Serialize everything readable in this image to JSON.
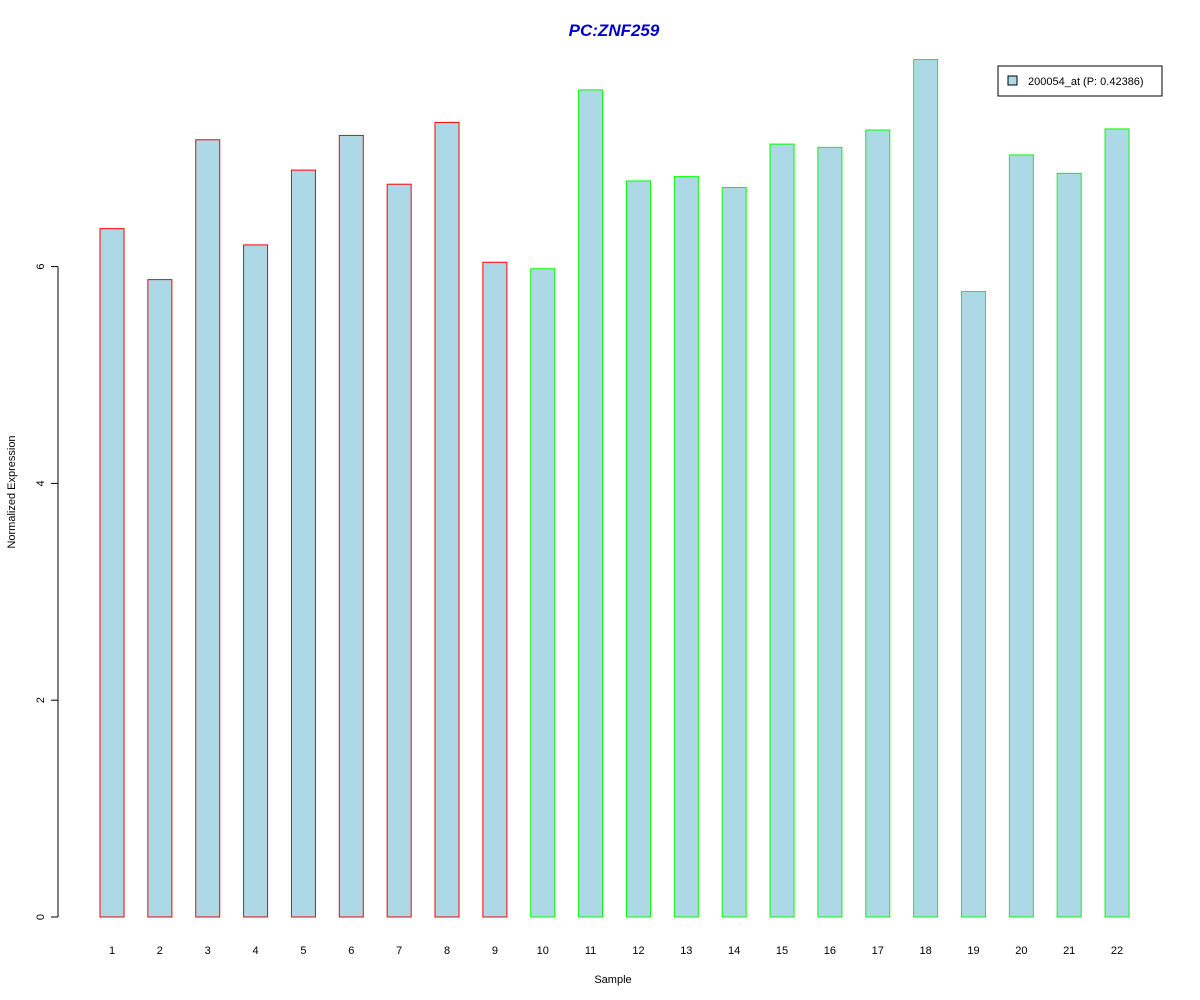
{
  "chart_data": {
    "type": "bar",
    "title": "PC:ZNF259",
    "xlabel": "Sample",
    "ylabel": "Normalized Expression",
    "categories": [
      "1",
      "2",
      "3",
      "4",
      "5",
      "6",
      "7",
      "8",
      "9",
      "10",
      "11",
      "12",
      "13",
      "14",
      "15",
      "16",
      "17",
      "18",
      "19",
      "20",
      "21",
      "22"
    ],
    "series": [
      {
        "name": "200054_at (P: 0.42386)",
        "values": [
          6.35,
          5.88,
          7.17,
          6.2,
          6.89,
          7.21,
          6.76,
          7.33,
          6.04,
          5.98,
          7.63,
          6.79,
          6.83,
          6.73,
          7.13,
          7.1,
          7.26,
          7.91,
          5.77,
          7.03,
          6.86,
          7.27
        ]
      }
    ],
    "bar_fill": "#add8e6",
    "group_border_colors": [
      "#ff0000",
      "#ff0000",
      "#ff0000",
      "#ff0000",
      "#ff0000",
      "#ff0000",
      "#ff0000",
      "#ff0000",
      "#ff0000",
      "#00ff00",
      "#00ff00",
      "#00ff00",
      "#00ff00",
      "#00ff00",
      "#00ff00",
      "#00ff00",
      "#00ff00",
      "#00ff00",
      "#00ff00",
      "#00ff00",
      "#00ff00",
      "#00ff00"
    ],
    "yticks": [
      0,
      2,
      4,
      6
    ],
    "ylim": [
      0,
      8
    ],
    "title_color": "#0000cc",
    "legend_position": "top-right",
    "grid": false
  }
}
